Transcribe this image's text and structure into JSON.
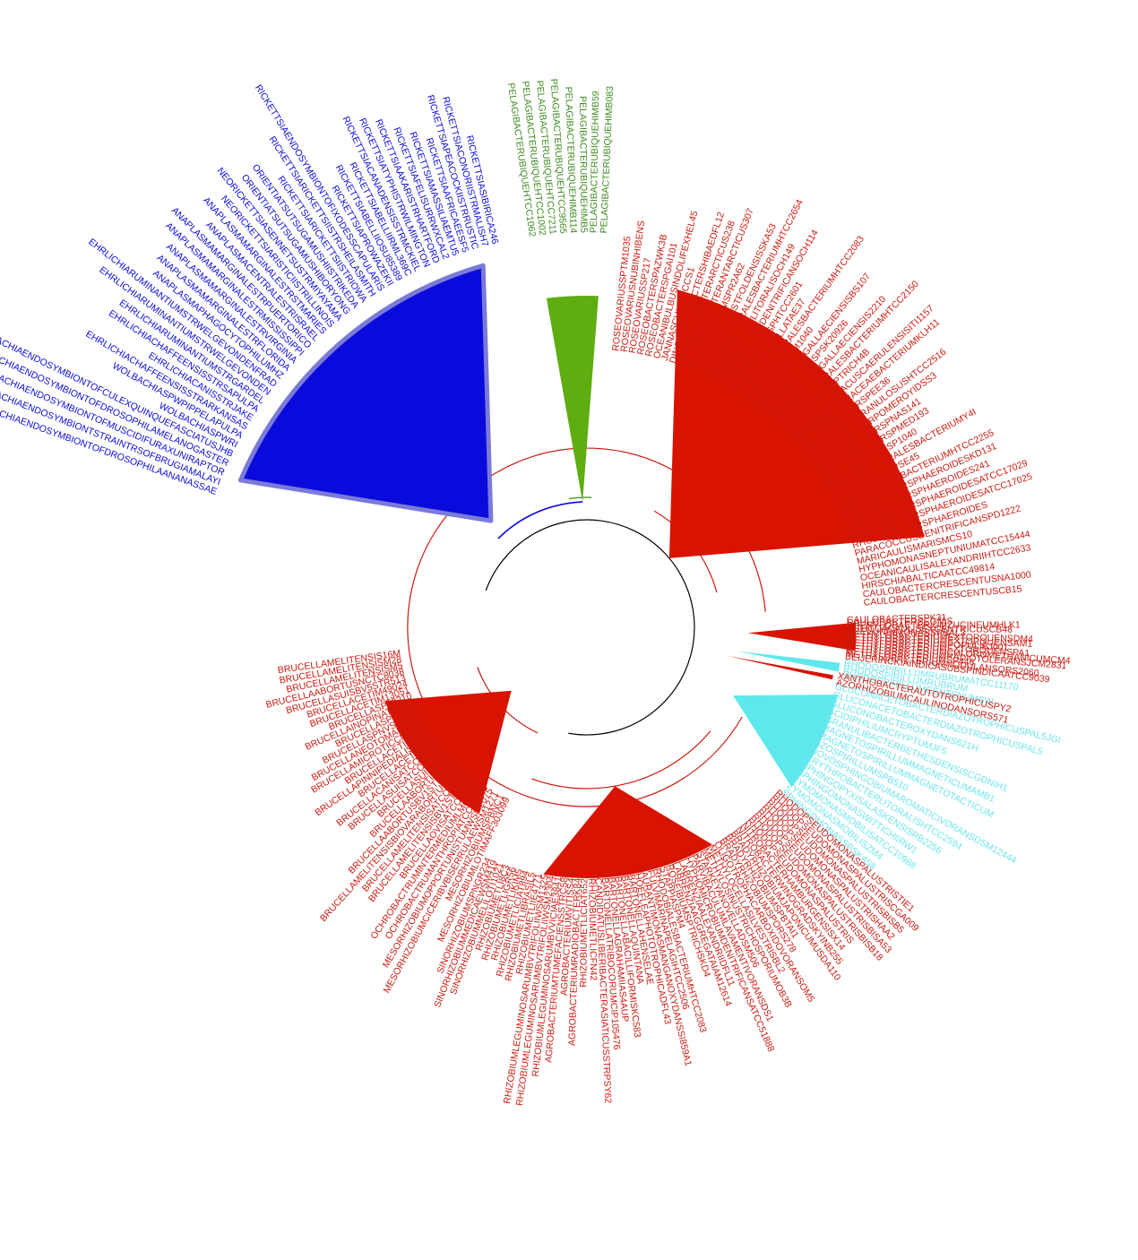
{
  "colors": {
    "blue": "#0a0adc",
    "green": "#3d8a1e",
    "green_fill": "#5fad10",
    "red": "#cc1a10",
    "red_fill": "#d81300",
    "cyan": "#5ee8ec",
    "cyan_text": "#6fe6ee",
    "black": "#000000"
  },
  "clades": [
    {
      "name": "blue",
      "labels": [
        "WOLBACHIAENDOSYMBIONTOFDROSOPHILAANANASSAE",
        "WOLBACHIAENDOSYMBIONTSTRAINTRSOFBRUGIAMALAYI",
        "WOLBACHIAENDOSYMBIONTOFMUSCIDIFURAXUNIRAPTOR",
        "WOLBACHIAENDOSYMBIONTOFDROSOPHILAMELANOGASTER",
        "WOLBACHIAENDOSYMBIONTOFCULEXQUINQUEFASCIATUSJHB",
        "WOLBACHIASPWRI",
        "WOLBACHIASPWPIPPELAPULPA",
        "EHRLICHIACHAFFEENSISSTRARKANSAS",
        "EHRLICHIACANISSTRJAKE",
        "EHRLICHIACHAFFEENSISSTRSAPULPA",
        "EHRLICHIARUMINANTIUMSTRGARDEL",
        "EHRLICHIARUMINANTIUMSTRWELGEVONDEN",
        "EHRLICHIARUMINANTIUMSTRWELGEVONDENFRAD",
        "ANAPLASMAPHAGOCYTOPHILUMHZ",
        "ANAPLASMAMARGINALESTRFLORIDA",
        "ANAPLASMAMARGINALESTRVIRGINIA",
        "ANAPLASMAMARGINALESTRMISSISSIPPI",
        "ANAPLASMAMARGINALESTRPUERTORICO",
        "ANAPLASMACENTRALESTRISRAEL",
        "ANAPLASMAMARGINALESTRSTMARIES",
        "NEORICKETTSIARISTICIISTRILLINOIS",
        "NEORICKETTSIASENNETSUSTRMIYAYAMA",
        "ORIENTIATSUTSUGAMUSHIBORYONG",
        "ORIENTIATSUTSUGAMUSHIISTRIKEDA",
        "RICKETTSIARICKETTSIISTRIOWA",
        "RICKETTSIARICKETTSIISTRSHEILASMITH",
        "RICKETTSIAENDOSYMBIONTOFIXODESSCAPULARIS",
        "RICKETTSIAPROWAZEKII",
        "RICKETTSIABELLIIOSU85389",
        "RICKETTSIABELLIIRML369C",
        "RICKETTSIACANADENSISSTRMCKIEL",
        "RICKETTSIATYPHISTRWILMINGTON",
        "RICKETTSIAAKARISTRHARTFORD",
        "RICKETTSIAFELISURRWXCAL2",
        "RICKETTSIAMASSILIAEMTU5",
        "RICKETTSIAAFRICAEESF5",
        "RICKETTSIAPEACOCKIISTRRUSTIC",
        "RICKETTSIACONORIISTRMALISH7",
        "RICKETTSIASIBIRICA246"
      ]
    },
    {
      "name": "green",
      "labels": [
        "PELAGIBACTERUBIQUEHTCC1062",
        "PELAGIBACTERUBIQUEHTCC1002",
        "PELAGIBACTERUBIQUEHTCC7211",
        "PELAGIBACTERUBIQUEHTCC9565",
        "PELAGIBACTERUBIQUEHIMB114",
        "PELAGIBACTERUBIQUEHIMB5",
        "PELAGIBACTERUBIQUEHIMB59",
        "PELAGIBACTERUBIQUEHIMB083"
      ]
    },
    {
      "name": "red-upper",
      "labels": [
        "ROSEOVARIUSSPTM1035",
        "ROSEOVARIUSNUBINHIBENS",
        "ROSEOVARIUSSP217",
        "ROSEOBACTERSPAZWK3B",
        "ROSEOBACTERSPGAI101",
        "OCEANIBULBUSINDOLIFEXHEL45",
        "JANNASCHIASPCCS1",
        "DINOROSEOBACTERSHIBAEDFL12",
        "OCTADECABACTERARCTICUS238",
        "OCTADECABACTERANTARCTICUS307",
        "THALASSIOBIUMSPR2A62",
        "LOKTANELLAVESTFOLDENSISSKA53",
        "RHODOBACTERALESBACTERIUMHTCC2654",
        "ROSEOBACTERLITORALISOCH149",
        "ROSEOBACTERDENITRIFICANSOCH114",
        "ROSEOVARIUSSPHTCC2601",
        "SAGITTULASTELLATAE37",
        "RHODOBACTERALESBACTERIUMHTCC2083",
        "RUEGERIASPTM1040",
        "PHAEOBACTERGALLAECIENSISBS107",
        "ROSEOBACTERSPSK20926",
        "PHAEOBACTERGALLAECIENSIS2210",
        "RHODOBACTERALESBACTERIUMHTCC2150",
        "SILICIBACTERSPTRICH4B",
        "SILICIBACTERLACUSCAERULENSISITI1157",
        "RHODOBACTERACEAEBACTERIUMKLH11",
        "SULFITOBACTERSPEE36",
        "OCEANICOLAGRANULOSUSHTCC2516",
        "SULFITOBACTERPOMEROYIDSS3",
        "SULFITOBACTERSPNAS141",
        "SULFITOBACTERSPMED193",
        "ROSEOBACTERSP1040",
        "RHODOBACTERALESBACTERIUMY4I",
        "CITREICELLASPSE45",
        "ALPHAPROTEOBACTERIUMHTCC2255",
        "RHODOBACTERSPHAEROIDESKD131",
        "RHODOBACTERSPHAEROIDES241",
        "RHODOBACTERSPHAEROIDESATCC17029",
        "RHODOBACTERSPHAEROIDESATCC17025",
        "RHODOBACTERSPHAEROIDES",
        "PARACOCCUSDENITRIFICANSPD1222",
        "MARICAULISMARISMCS10",
        "HYPHOMONASNEPTUNIUMATCC15444",
        "OCEANICAULISALEXANDRIIHTCC2633",
        "HIRSCHIABALTICAATCC49814",
        "CAULOBACTERCRESCENTUSNA1000",
        "CAULOBACTERCRESCENTUSCB15"
      ]
    },
    {
      "name": "red-right",
      "labels": [
        "CAULOBACTERSPK31",
        "CAULOBACTERSEGNIS",
        "PHENYLOBACTERIUMZUCINEUMHLK1",
        "ASTICCACAULISEXCENTRICUSCB48",
        "BREVUNDIMONASSPBAL3",
        "METHYLOBACTERIUMEXTORQUENSDM4",
        "METHYLOBACTERIUMEXTORQUENSAM1",
        "METHYLOBACTERIUMPOPULIBJ001",
        "METHYLOBACTERIUMEXTORQUENSPA1",
        "METHYLOBACTERIUMCHLOROMETHANICUMCM4",
        "METHYLOBACTERIUMRADIOTOLERANSJCM2831",
        "METHYLOBACTERIUMSP446",
        "METHYLOBACTERIUMNODULANSORS2060",
        "BEIJERINCKIAINDICASUBSPINDICAATCC9039"
      ]
    },
    {
      "name": "cyan-1",
      "labels": [
        "RHODOSPIRILLUMRUBRUMATCC11170",
        "RHODOSPIRILLUMRUBRUM",
        "RHODOSPIRILLUMCENTENUMSW"
      ]
    },
    {
      "name": "red-xantho",
      "labels": [
        "XANTHOBACTERAUTOTROPHICUSPY2",
        "AZORHIZOBIUMCAULINODANSORS571"
      ]
    },
    {
      "name": "cyan-2",
      "labels": [
        "GLUCONACETOBACTERDIAZOTROPHICUSPAL5JGI",
        "GLUCONACETOBACTERDIAZOTROPHICUSPAL5",
        "GLUCONOBACTEROXYDANS621H",
        "ACIDIPHILIUMCRYPTUMJF5",
        "GRANULIBACTERBETHESDENSISCGDNIH1",
        "MAGNETOSPIRILLUMMAGNETICUMAMB1",
        "MAGNETOSPIRILLUMMAGNETOTACTICUM",
        "AZOSPIRILLUMSPB510",
        "NOVOSPHINGOBIUMAROMATICIVORANSDSM12444",
        "ERYTHROBACTERLITORALISHTCC2594",
        "SPHINGOPYXISALASKENSISRB2256",
        "SPHINGOMONASWITTICHIIRW1",
        "ZYMOMONASMOBILISATCC10988",
        "ZYMOMONASMOBILISZM4",
        "SPHINGOMONASSPSKA58"
      ]
    },
    {
      "name": "red-lower",
      "labels": [
        "RHODOPSEUDOMONASPALUSTRISTIE1",
        "RHODOPSEUDOMONASPALUSTRISCGA009",
        "RHODOPSEUDOMONASPALUSTRISBISB5",
        "RHODOPSEUDOMONASPALUSTRISHAA2",
        "RHODOPSEUDOMONASPALUSTRISBISA53",
        "RHODOPSEUDOMONASPALUSTRISBISB18",
        "RHODOPSEUDOMONASPALUSTRIS",
        "NITROBACTERHAMBURGENSISX14",
        "NITROBACTERWINOGRADSKYINB255",
        "BRADYRHIZOBIUMJAPONICUMUSDA110",
        "BRADYRHIZOBIUMSPBTAI1",
        "BRADYRHIZOBIUMSPORS278",
        "OLIGOTROPHACARBOXIDOVORANSOM5",
        "METHYLOCELLASILVESTRISBL2",
        "METHYLOSINUSTRICHOSPORIUMOB3B",
        "STARKEYANOVELLADSM506",
        "PARVIBACULUMLAVAMENTIVORANSDS1",
        "HYPHOMICROBIUMDENITRIFICANSATCC51888",
        "LABRENZIAALEXANDRIIDFL11",
        "LABRENZIAAGGREGATAIAM12614",
        "ROSEIBIUMSPTRICHSKD4",
        "STAPPIASPM4",
        "RHODOBIALESBACTERIUMHTCC2083",
        "FULVIMARINAPELAGIHTCC2506",
        "AURANTIMONASMANGANOXYDANSSI859A1",
        "HOEFLEAPHOTOTROPHICADFL43",
        "BARTONELLAHENSELAE",
        "BARTONELLAQUINTANA",
        "BARTONELLABACILLIFORMISKC583",
        "BARTONELLAGRAHAMIIAS4AUP",
        "BARTONELLATRIBOCORUMCIP105476",
        "CANDIDATUSLIBERIBACTERASIATICUSSTRPSY62",
        "RHIZOBIUMETLICFN42",
        "RHIZOBIUMETLICIAT652",
        "AGROBACTERIUMRADIOBACTERK84",
        "AGROBACTERIUMVITISS4",
        "AGROBACTERIUMTUMEFACIENSSTRC58",
        "RHIZOBIUMLEGUMINOSARUMBVVICIAE3841",
        "RHIZOBIUMLEGUMINOSARUMBVTRIFOLIIWSM2304",
        "RHIZOBIUMLEGUMINOSARUMBVTRIFOLIIWSM1325",
        "RHIZOBIUMETLIIE4771",
        "RHIZOBIUMETLIBRASIL5",
        "RHIZOBIUMETLICIAT894",
        "RHIZOBIUMETLIKIM5",
        "RHIZOBIUMETLIGR56",
        "RHIZOBIUMETLI8C3",
        "SINORHIZOBIUMMELILOTI1021",
        "SINORHIZOBIUMMEDICAEWSM419",
        "SINORHIZOBIUMSPNGR234"
      ]
    },
    {
      "name": "red-brucella",
      "labels": [
        "MESORHIZOBIUMLOTIMAFF303099",
        "MESORHIZOBIUMSPBNC1",
        "MESORHIZOBIUMCICERIBVBISERRULAEWSM1271",
        "MESORHIZOBIUMOPPORTUNISTUMWSM2075",
        "OCHROBACTRUMANTHROPIATCC49188",
        "OCHROBACTRUMINTERMEDIUMLMG3301",
        "BRUCELLAOVISATCC25840",
        "BRUCELLAMELITENSISBV1STR16M",
        "BRUCELLAMELITENSISATCC23457",
        "BRUCELLAMELITENSISBIOVARABORTUS2308",
        "BRUCELLAABORTUSBV1STR9941",
        "BRUCELLAABORTUSS19",
        "BRUCELLASUIS1330",
        "BRUCELLASUISATCC23445",
        "BRUCELLACANISATCC23365",
        "BRUCELLACETIM644",
        "BRUCELLAPINNIPEDIALISM292",
        "BRUCELLACETIB1941",
        "BRUCELLAMICROTICCM4915",
        "BRUCELLANEOTOMAE5K33",
        "BRUCELLASPNVSL0702",
        "BRUCELLASPF5599",
        "BRUCELLAINOPINATABO1",
        "BRUCELLASP83210",
        "BRUCELLACETIM13051",
        "BRUCELLACETIM49024",
        "BRUCELLASUISBV5STR513",
        "BRUCELLAABORTUSNCTC8038",
        "BRUCELLAMELITENSISM5",
        "BRUCELLAMELITENSISM28",
        "BRUCELLAMELITENSIS16M"
      ]
    }
  ]
}
